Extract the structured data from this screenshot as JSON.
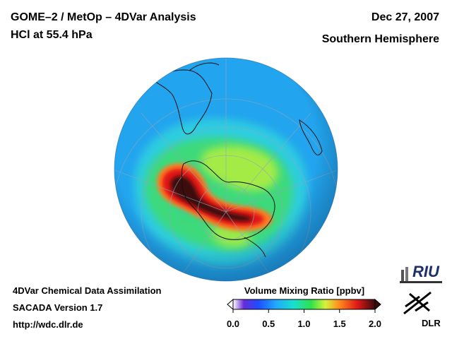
{
  "header": {
    "title_line1": "GOME–2 / MetOp – 4DVar Analysis",
    "title_line2": "HCl at 55.4 hPa",
    "date": "Dec 27, 2007",
    "region": "Southern Hemisphere"
  },
  "footer": {
    "line1": "4DVar Chemical Data Assimilation",
    "line2": "SACADA Version 1.7",
    "line3": "http://wdc.dlr.de"
  },
  "colorbar": {
    "title": "Volume Mixing Ratio [ppbv]",
    "range": [
      0.0,
      2.0
    ],
    "ticks": [
      {
        "value": 0.0,
        "label": "0.0"
      },
      {
        "value": 0.5,
        "label": "0.5"
      },
      {
        "value": 1.0,
        "label": "1.0"
      },
      {
        "value": 1.5,
        "label": "1.5"
      },
      {
        "value": 2.0,
        "label": "2.0"
      }
    ],
    "stops": [
      {
        "value": 0.0,
        "color": "#ffffff"
      },
      {
        "value": 0.15,
        "color": "#6a2bd8"
      },
      {
        "value": 0.35,
        "color": "#1e4cff"
      },
      {
        "value": 0.6,
        "color": "#1fa8ff"
      },
      {
        "value": 0.85,
        "color": "#18e0d0"
      },
      {
        "value": 1.1,
        "color": "#2ee24a"
      },
      {
        "value": 1.3,
        "color": "#d6f23a"
      },
      {
        "value": 1.5,
        "color": "#ff8a1c"
      },
      {
        "value": 1.75,
        "color": "#e01818"
      },
      {
        "value": 2.0,
        "color": "#3a0b0b"
      }
    ]
  },
  "map": {
    "projection": "orthographic",
    "hemisphere": "south",
    "background_value_ppbv": 0.55
  },
  "logos": {
    "riu": "RIU",
    "dlr": "DLR"
  }
}
